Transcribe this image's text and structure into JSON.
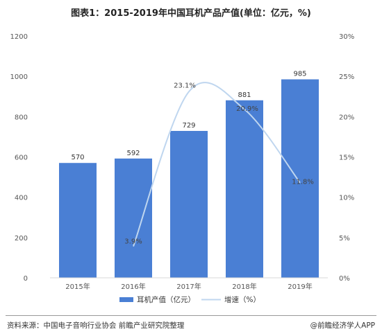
{
  "title": "图表1：2015-2019年中国耳机产品产值(单位：亿元，%)",
  "footer": {
    "source": "资料来源：中国电子音响行业协会 前瞻产业研究院整理",
    "credit": "@前瞻经济学人APP"
  },
  "colors": {
    "bar": "#4a7fd4",
    "line": "#bfd6ef",
    "text": "#555555",
    "axis": "#d9d9d9"
  },
  "chart_data": {
    "type": "bar",
    "categories": [
      "2015年",
      "2016年",
      "2017年",
      "2018年",
      "2019年"
    ],
    "y_left": {
      "min": 0,
      "max": 1200,
      "ticks": [
        0,
        200,
        400,
        600,
        800,
        1000,
        1200
      ]
    },
    "y_right": {
      "min": 0,
      "max": 30,
      "unit": "%",
      "ticks": [
        0,
        5,
        10,
        15,
        20,
        25,
        30
      ]
    },
    "series": [
      {
        "name": "耳机产值（亿元）",
        "type": "bar",
        "axis": "left",
        "values": [
          570,
          592,
          729,
          881,
          985
        ],
        "labels": [
          "570",
          "592",
          "729",
          "881",
          "985"
        ]
      },
      {
        "name": "增速（%）",
        "type": "line",
        "axis": "right",
        "smooth": true,
        "values": [
          null,
          3.9,
          23.1,
          20.9,
          11.8
        ],
        "labels": [
          "",
          "3.9%",
          "23.1%",
          "20.9%",
          "11.8%"
        ]
      }
    ],
    "legend_position": "bottom",
    "grid": false
  }
}
